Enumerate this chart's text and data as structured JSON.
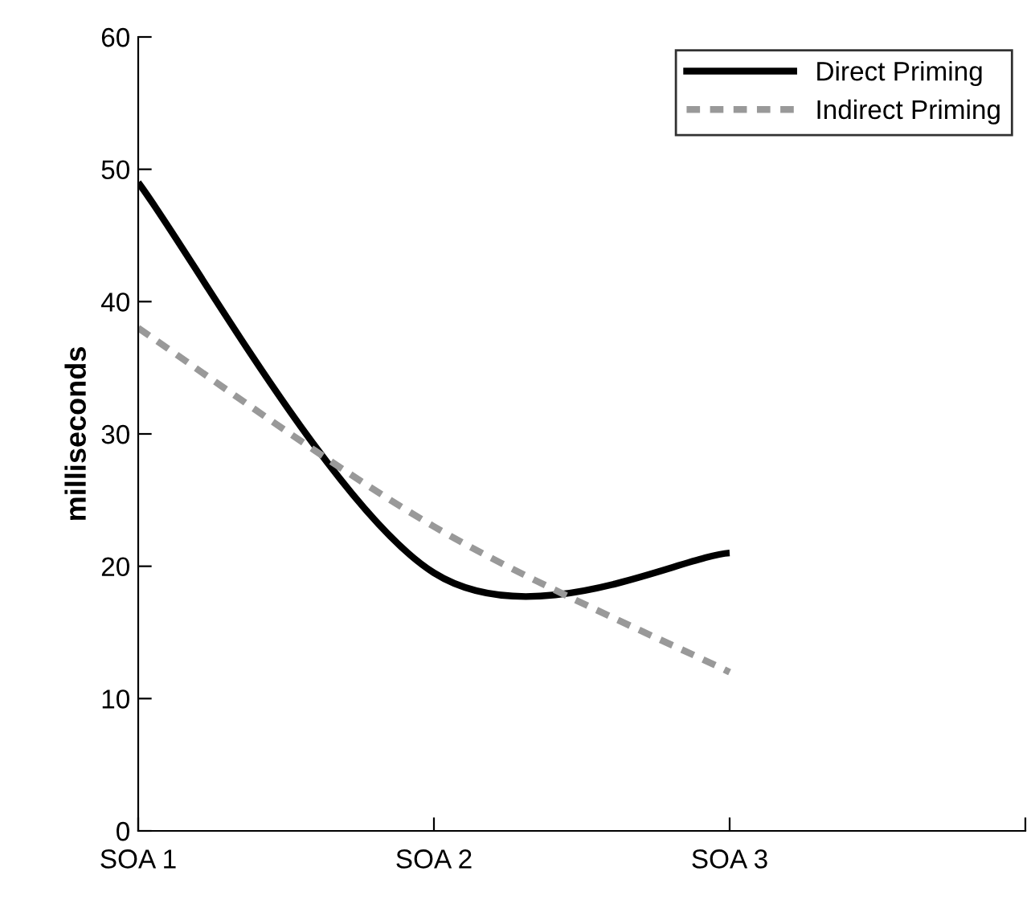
{
  "chart_data": {
    "type": "line",
    "ylabel": "milliseconds",
    "categories": [
      "SOA 1",
      "SOA 2",
      "SOA 3",
      null
    ],
    "series": [
      {
        "name": "Direct Priming",
        "color": "#000000",
        "line_style": "solid",
        "values": [
          49,
          19.5,
          21,
          null
        ]
      },
      {
        "name": "Indirect Priming",
        "color": "#999999",
        "line_style": "dashed",
        "values": [
          38,
          23,
          12,
          null
        ]
      }
    ],
    "ylim": [
      0,
      60
    ],
    "yticks": [
      0,
      10,
      20,
      30,
      40,
      50,
      60
    ],
    "grid": false,
    "legend": "top right",
    "marker": "none"
  }
}
